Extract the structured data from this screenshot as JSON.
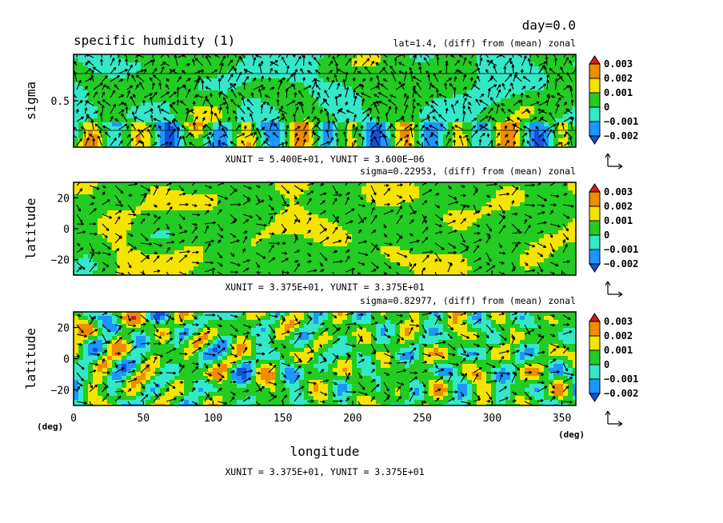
{
  "figure": {
    "day_label": "day=0.0",
    "title": "specific humidity (1)",
    "x_axis_label": "longitude",
    "x_unit_left": "(deg)",
    "x_unit_right": "(deg)"
  },
  "colorbar": {
    "levels": [
      "0.003",
      "0.002",
      "0.001",
      "0",
      "−0.001",
      "−0.002"
    ],
    "colors": [
      "#d7191c",
      "#f08c00",
      "#f5e400",
      "#22cc22",
      "#33e8c8",
      "#1e96ff",
      "#1450dc"
    ]
  },
  "chart_data": [
    {
      "type": "heatmap",
      "info_label": "lat=1.4, (diff) from (mean) zonal",
      "ylabel": "sigma",
      "y_ticks": [
        "0.5"
      ],
      "y_tick_values": [
        0.5
      ],
      "ylim": [
        0,
        1
      ],
      "xlim": [
        0,
        360
      ],
      "unit_label": "XUNIT = 5.400E+01, YUNIT = 3.600E−06",
      "overlay": "vectors"
    },
    {
      "type": "heatmap",
      "info_label": "sigma=0.22953, (diff) from (mean) zonal",
      "ylabel": "latitude",
      "y_ticks": [
        "20",
        "0",
        "−20"
      ],
      "y_tick_values": [
        20,
        0,
        -20
      ],
      "ylim": [
        -30,
        30
      ],
      "xlim": [
        0,
        360
      ],
      "unit_label": "XUNIT = 3.375E+01, YUNIT = 3.375E+01",
      "overlay": "vectors"
    },
    {
      "type": "heatmap",
      "info_label": "sigma=0.82977, (diff) from (mean) zonal",
      "ylabel": "latitude",
      "y_ticks": [
        "20",
        "0",
        "−20"
      ],
      "y_tick_values": [
        20,
        0,
        -20
      ],
      "ylim": [
        -30,
        30
      ],
      "xlim": [
        0,
        360
      ],
      "x_ticks": [
        "0",
        "50",
        "100",
        "150",
        "200",
        "250",
        "300",
        "350"
      ],
      "x_tick_values": [
        0,
        50,
        100,
        150,
        200,
        250,
        300,
        350
      ],
      "unit_label": "XUNIT = 3.375E+01, YUNIT = 3.375E+01",
      "overlay": "vectors"
    }
  ]
}
